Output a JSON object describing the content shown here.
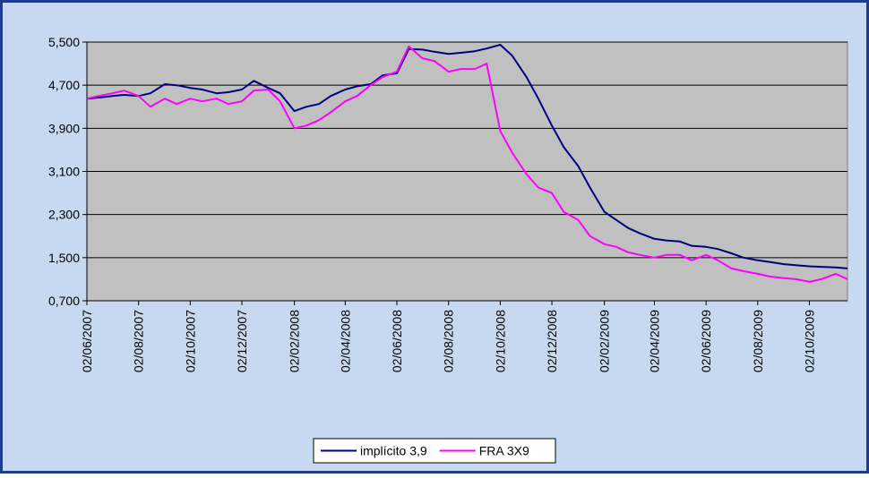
{
  "chart_data": {
    "type": "line",
    "x": [
      "02/06/2007",
      "16/06/2007",
      "02/07/2007",
      "16/07/2007",
      "02/08/2007",
      "16/08/2007",
      "02/09/2007",
      "16/09/2007",
      "02/10/2007",
      "16/10/2007",
      "02/11/2007",
      "16/11/2007",
      "02/12/2007",
      "16/12/2007",
      "02/01/2008",
      "16/01/2008",
      "02/02/2008",
      "16/02/2008",
      "02/03/2008",
      "16/03/2008",
      "02/04/2008",
      "16/04/2008",
      "02/05/2008",
      "16/05/2008",
      "02/06/2008",
      "16/06/2008",
      "02/07/2008",
      "16/07/2008",
      "02/08/2008",
      "16/08/2008",
      "02/09/2008",
      "16/09/2008",
      "02/10/2008",
      "16/10/2008",
      "02/11/2008",
      "16/11/2008",
      "02/12/2008",
      "16/12/2008",
      "02/01/2009",
      "16/01/2009",
      "02/02/2009",
      "16/02/2009",
      "02/03/2009",
      "16/03/2009",
      "02/04/2009",
      "16/04/2009",
      "02/05/2009",
      "16/05/2009",
      "02/06/2009",
      "16/06/2009",
      "02/07/2009",
      "16/07/2009",
      "02/08/2009",
      "16/08/2009",
      "02/09/2009",
      "16/09/2009",
      "02/10/2009",
      "16/10/2009",
      "02/11/2009",
      "16/11/2009"
    ],
    "series": [
      {
        "name": "implícito 3,9",
        "color": "#000080",
        "values": [
          4.45,
          4.47,
          4.5,
          4.52,
          4.5,
          4.55,
          4.72,
          4.7,
          4.65,
          4.62,
          4.55,
          4.57,
          4.62,
          4.78,
          4.65,
          4.55,
          4.22,
          4.3,
          4.35,
          4.5,
          4.62,
          4.68,
          4.72,
          4.88,
          4.92,
          5.37,
          5.36,
          5.32,
          5.28,
          5.3,
          5.33,
          5.38,
          5.45,
          5.25,
          4.85,
          4.45,
          3.95,
          3.55,
          3.2,
          2.8,
          2.35,
          2.2,
          2.05,
          1.95,
          1.85,
          1.82,
          1.8,
          1.72,
          1.7,
          1.66,
          1.58,
          1.5,
          1.45,
          1.42,
          1.38,
          1.36,
          1.34,
          1.33,
          1.32,
          1.3
        ]
      },
      {
        "name": "FRA 3X9",
        "color": "#ff00ff",
        "values": [
          4.45,
          4.5,
          4.55,
          4.6,
          4.5,
          4.3,
          4.45,
          4.35,
          4.45,
          4.4,
          4.45,
          4.35,
          4.4,
          4.6,
          4.62,
          4.4,
          3.9,
          3.95,
          4.05,
          4.2,
          4.4,
          4.5,
          4.7,
          4.85,
          4.95,
          5.42,
          5.2,
          5.15,
          4.95,
          5.0,
          5.0,
          5.1,
          3.85,
          3.45,
          3.05,
          2.8,
          2.7,
          2.35,
          2.2,
          1.9,
          1.75,
          1.7,
          1.6,
          1.55,
          1.5,
          1.55,
          1.55,
          1.45,
          1.55,
          1.45,
          1.3,
          1.25,
          1.2,
          1.15,
          1.12,
          1.1,
          1.05,
          1.1,
          1.2,
          1.1
        ]
      }
    ],
    "xlim": [
      "02/06/2007",
      "16/11/2009"
    ],
    "xticks": [
      "02/06/2007",
      "02/08/2007",
      "02/10/2007",
      "02/12/2007",
      "02/02/2008",
      "02/04/2008",
      "02/06/2008",
      "02/08/2008",
      "02/10/2008",
      "02/12/2008",
      "02/02/2009",
      "02/04/2009",
      "02/06/2009",
      "02/08/2009",
      "02/10/2009"
    ],
    "ylim": [
      0.7,
      5.5
    ],
    "yticks": [
      {
        "value": 0.7,
        "label": "0,700"
      },
      {
        "value": 1.5,
        "label": "1,500"
      },
      {
        "value": 2.3,
        "label": "2,300"
      },
      {
        "value": 3.1,
        "label": "3,100"
      },
      {
        "value": 3.9,
        "label": "3,900"
      },
      {
        "value": 4.7,
        "label": "4,700"
      },
      {
        "value": 5.5,
        "label": "5,500"
      }
    ],
    "grid": true,
    "legend": "bottom"
  }
}
